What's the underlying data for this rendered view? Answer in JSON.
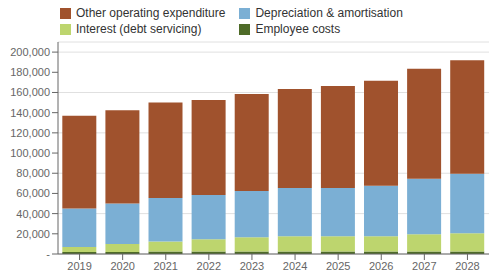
{
  "chart_data": {
    "type": "bar",
    "stacked": true,
    "categories": [
      "2019",
      "2020",
      "2021",
      "2022",
      "2023",
      "2024",
      "2025",
      "2026",
      "2027",
      "2028"
    ],
    "series": [
      {
        "name": "Employee costs",
        "color": "#4e6b28",
        "values": [
          2000,
          2000,
          2500,
          2500,
          2500,
          2500,
          2500,
          2500,
          2500,
          2500
        ]
      },
      {
        "name": "Interest (debt servicing)",
        "color": "#bdd56e",
        "values": [
          5000,
          8000,
          10000,
          12000,
          14000,
          15000,
          15000,
          15000,
          17000,
          18000
        ]
      },
      {
        "name": "Depreciation & amortisation",
        "color": "#7bafd4",
        "values": [
          38000,
          40000,
          43000,
          44000,
          46000,
          48000,
          48000,
          50000,
          55000,
          59000
        ]
      },
      {
        "name": "Other operating expenditure",
        "color": "#a0522d",
        "values": [
          92000,
          92500,
          94500,
          94000,
          96000,
          98000,
          101000,
          104000,
          109000,
          112500
        ]
      }
    ],
    "ylim": [
      0,
      210000
    ],
    "yticks": [
      {
        "value": 0,
        "label": "-"
      },
      {
        "value": 20000,
        "label": "20,000"
      },
      {
        "value": 40000,
        "label": "40,000"
      },
      {
        "value": 60000,
        "label": "60,000"
      },
      {
        "value": 80000,
        "label": "80,000"
      },
      {
        "value": 100000,
        "label": "100,000"
      },
      {
        "value": 120000,
        "label": "120,000"
      },
      {
        "value": 140000,
        "label": "140,000"
      },
      {
        "value": 160000,
        "label": "160,000"
      },
      {
        "value": 180000,
        "label": "180,000"
      },
      {
        "value": 200000,
        "label": "200,000"
      }
    ],
    "grid": true,
    "legend": "top"
  }
}
